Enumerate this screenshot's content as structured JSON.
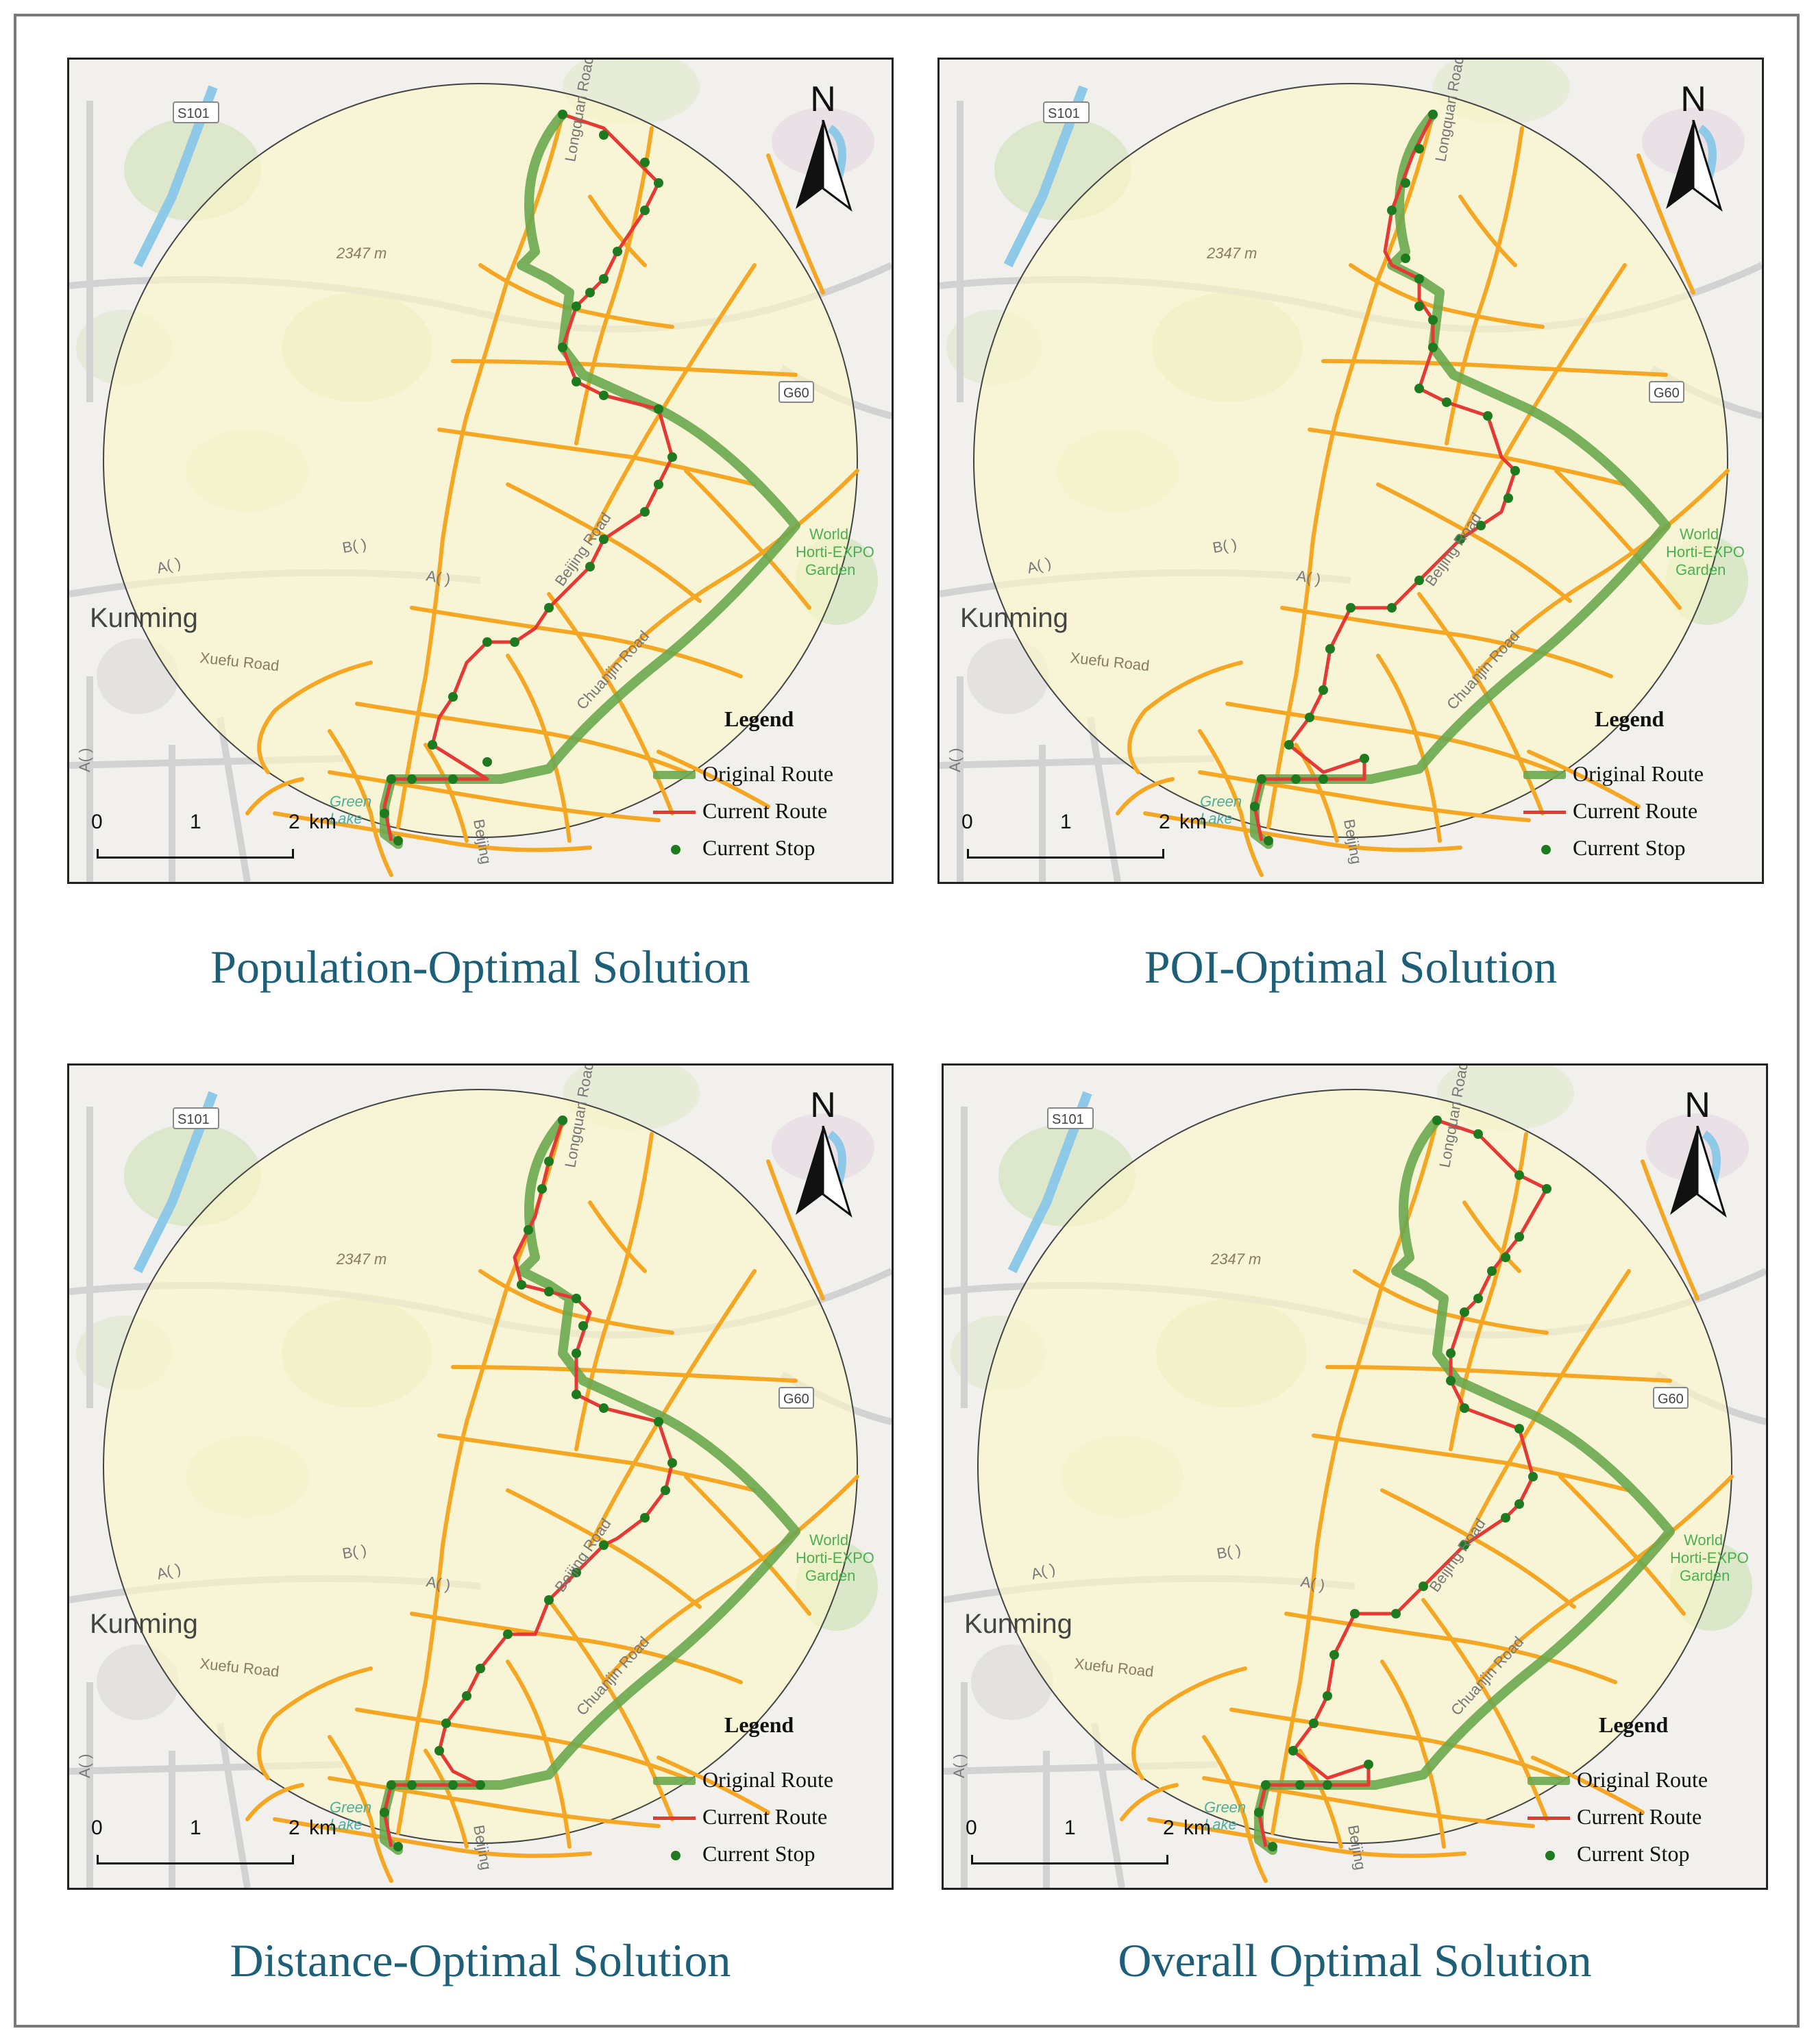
{
  "panels": [
    {
      "caption": "Population-Optimal Solution",
      "variant": "population"
    },
    {
      "caption": "POI-Optimal Solution",
      "variant": "poi"
    },
    {
      "caption": "Distance-Optimal Solution",
      "variant": "distance"
    },
    {
      "caption": "Overall Optimal Solution",
      "variant": "overall"
    }
  ],
  "map_labels": {
    "city": "Kunming",
    "road_s101": "S101",
    "road_g60": "G60",
    "elevation": "2347 m",
    "garden_line1": "World",
    "garden_line2": "Horti-EXPO",
    "garden_line3": "Garden",
    "xuefu": "Xuefu Road",
    "lake_line1": "Green",
    "lake_line2": "Lake",
    "longquan": "Longquan Road",
    "beijing_road": "Beijing Road",
    "chuanjin": "Chuanjin Road",
    "beijing_bottom": "Beijing",
    "a_label": "A( )",
    "b_label": "B( )",
    "a_vertical": "A( )"
  },
  "north_arrow": {
    "label": "N"
  },
  "scale_bar": {
    "ticks": [
      "0",
      "1",
      "2"
    ],
    "unit": "km"
  },
  "legend": {
    "title": "Legend",
    "original_route": "Original Route",
    "current_route": "Current Route",
    "current_stop": "Current Stop"
  },
  "colors": {
    "original_route": "#6aa84f",
    "current_route": "#e53935",
    "current_stop": "#1e7a1e",
    "roads": "#f5a623",
    "buffer_fill": "#fdf8c8"
  }
}
